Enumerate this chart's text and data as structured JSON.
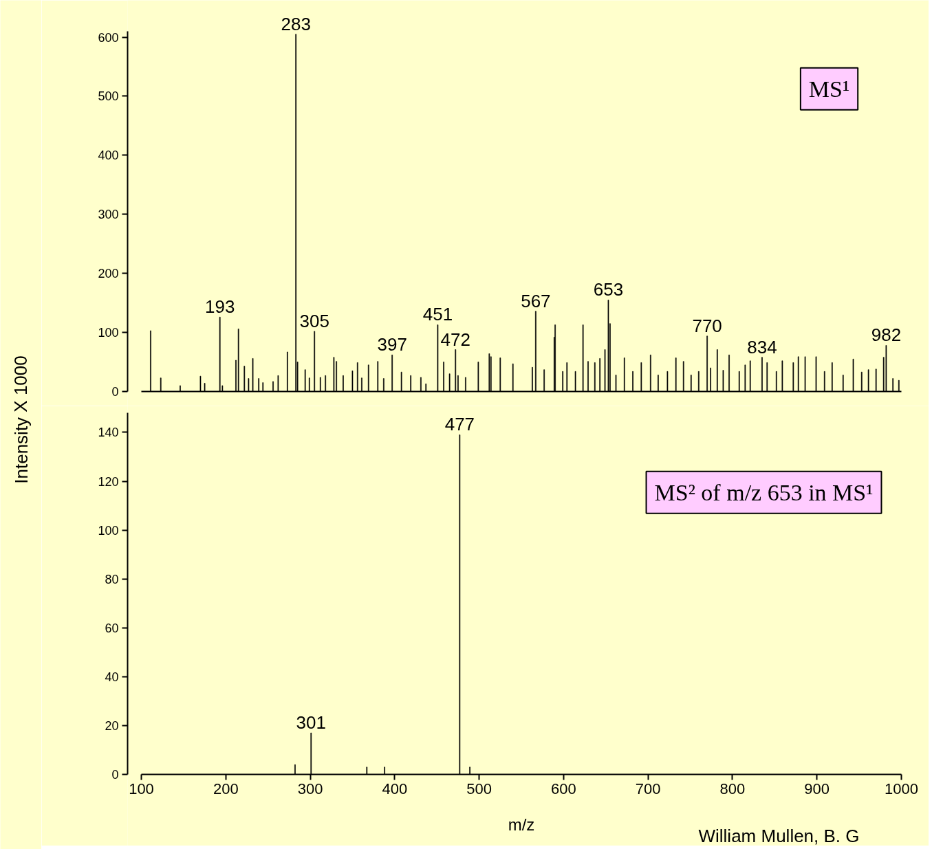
{
  "chart_data": [
    {
      "type": "bar",
      "color": "#000000",
      "ylabel": "Intensity X 1000",
      "tick_labels": "y",
      "grid": false,
      "x": [
        111,
        123,
        146,
        170,
        175,
        193,
        196,
        212,
        215,
        222,
        227,
        232,
        239,
        244,
        256,
        262,
        273,
        283,
        285,
        294,
        299,
        305,
        312,
        318,
        328,
        331,
        339,
        350,
        356,
        361,
        369,
        380,
        387,
        397,
        408,
        419,
        431,
        437,
        451,
        458,
        465,
        472,
        475,
        484,
        499,
        512,
        514,
        525,
        540,
        563,
        567,
        577,
        589,
        590,
        599,
        604,
        614,
        623,
        629,
        637,
        643,
        649,
        653,
        655,
        662,
        672,
        682,
        692,
        703,
        712,
        723,
        733,
        742,
        751,
        760,
        770,
        774,
        782,
        789,
        796,
        808,
        815,
        821,
        835,
        841,
        852,
        859,
        872,
        878,
        886,
        899,
        909,
        918,
        931,
        943,
        953,
        961,
        970,
        979,
        982,
        990,
        997
      ],
      "values": [
        103,
        23,
        10,
        26,
        14,
        126,
        10,
        53,
        106,
        43,
        22,
        56,
        22,
        15,
        17,
        27,
        67,
        605,
        50,
        37,
        23,
        102,
        24,
        27,
        58,
        51,
        27,
        35,
        49,
        23,
        45,
        51,
        22,
        62,
        33,
        27,
        24,
        13,
        113,
        50,
        30,
        71,
        27,
        24,
        50,
        64,
        59,
        57,
        47,
        41,
        136,
        37,
        92,
        113,
        34,
        49,
        34,
        113,
        51,
        49,
        56,
        71,
        155,
        115,
        28,
        57,
        34,
        49,
        62,
        28,
        34,
        57,
        51,
        28,
        34,
        94,
        40,
        71,
        36,
        62,
        34,
        45,
        52,
        58,
        49,
        34,
        52,
        49,
        59,
        59,
        59,
        34,
        49,
        28,
        55,
        33,
        37,
        38,
        58,
        78,
        22,
        19
      ],
      "xlim": [
        100,
        1000
      ],
      "ylim": [
        0,
        610
      ],
      "yticks": [
        0,
        100,
        200,
        300,
        400,
        500,
        600
      ],
      "annotations": [
        {
          "text": "283",
          "x": 283,
          "y": 605
        },
        {
          "text": "193",
          "x": 193,
          "y": 126
        },
        {
          "text": "305",
          "x": 305,
          "y": 102
        },
        {
          "text": "397",
          "x": 397,
          "y": 62
        },
        {
          "text": "451",
          "x": 451,
          "y": 113
        },
        {
          "text": "472",
          "x": 472,
          "y": 71
        },
        {
          "text": "567",
          "x": 567,
          "y": 136
        },
        {
          "text": "653",
          "x": 653,
          "y": 155
        },
        {
          "text": "770",
          "x": 770,
          "y": 94
        },
        {
          "text": "834",
          "x": 835,
          "y": 58
        },
        {
          "text": "982",
          "x": 982,
          "y": 78
        },
        "MS¹"
      ]
    },
    {
      "type": "bar",
      "color": "#000000",
      "xlabel": "m/z",
      "grid": false,
      "x": [
        282,
        301,
        367,
        388,
        477,
        489
      ],
      "values": [
        4,
        17,
        3,
        3,
        139,
        3
      ],
      "xlim": [
        100,
        1000
      ],
      "ylim": [
        0,
        148
      ],
      "xticks": [
        100,
        200,
        300,
        400,
        500,
        600,
        700,
        800,
        900,
        1000
      ],
      "yticks": [
        0,
        20,
        40,
        60,
        80,
        100,
        120,
        140
      ],
      "annotations": [
        {
          "text": "301",
          "x": 301,
          "y": 17
        },
        {
          "text": "477",
          "x": 477,
          "y": 139
        },
        "MS² of m/z 653 in MS¹",
        "William Mullen, B. G"
      ]
    }
  ]
}
